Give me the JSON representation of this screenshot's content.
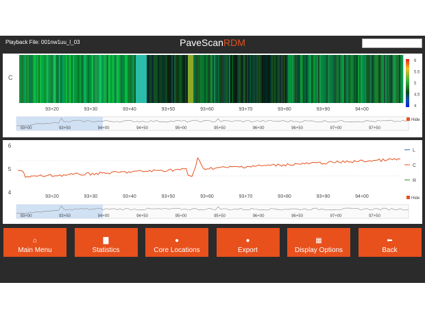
{
  "topbar": {
    "playback_label": "Playback File: 001nw1uu_l_03",
    "brand_main": "PaveScan",
    "brand_accent": "RDM",
    "search_value": ""
  },
  "heatmap": {
    "row_label": "C",
    "x_ticks": [
      "93+20",
      "93+30",
      "93+40",
      "93+50",
      "93+60",
      "93+70",
      "93+80",
      "93+90",
      "94+00"
    ],
    "colorbar_ticks": [
      "6",
      "5.5",
      "5",
      "4.5",
      "4"
    ],
    "legend_hide": "Hide"
  },
  "navigator": {
    "ticks": [
      "93+00",
      "93+50",
      "94+00",
      "94+50",
      "95+00",
      "95+50",
      "96+00",
      "96+50",
      "97+00",
      "97+50"
    ]
  },
  "line_chart": {
    "y_ticks": [
      "6",
      "5",
      "4"
    ],
    "x_ticks": [
      "93+20",
      "93+30",
      "93+40",
      "93+50",
      "93+60",
      "93+70",
      "93+80",
      "93+90",
      "94+00"
    ],
    "legend": [
      {
        "label": "L",
        "color": "#1f5fa8"
      },
      {
        "label": "C",
        "color": "#e8501c"
      },
      {
        "label": "R",
        "color": "#2e8b2e"
      }
    ],
    "legend_hide": "Hide"
  },
  "buttons": [
    {
      "label": "Main Menu",
      "icon": "home-icon"
    },
    {
      "label": "Statistics",
      "icon": "bar-chart-icon"
    },
    {
      "label": "Core Locations",
      "icon": "globe-icon"
    },
    {
      "label": "Export",
      "icon": "globe-icon"
    },
    {
      "label": "Display Options",
      "icon": "table-icon"
    },
    {
      "label": "Back",
      "icon": "arrow-left-icon"
    }
  ],
  "colors": {
    "accent": "#e8501c",
    "bar": "#2b2b2b"
  }
}
